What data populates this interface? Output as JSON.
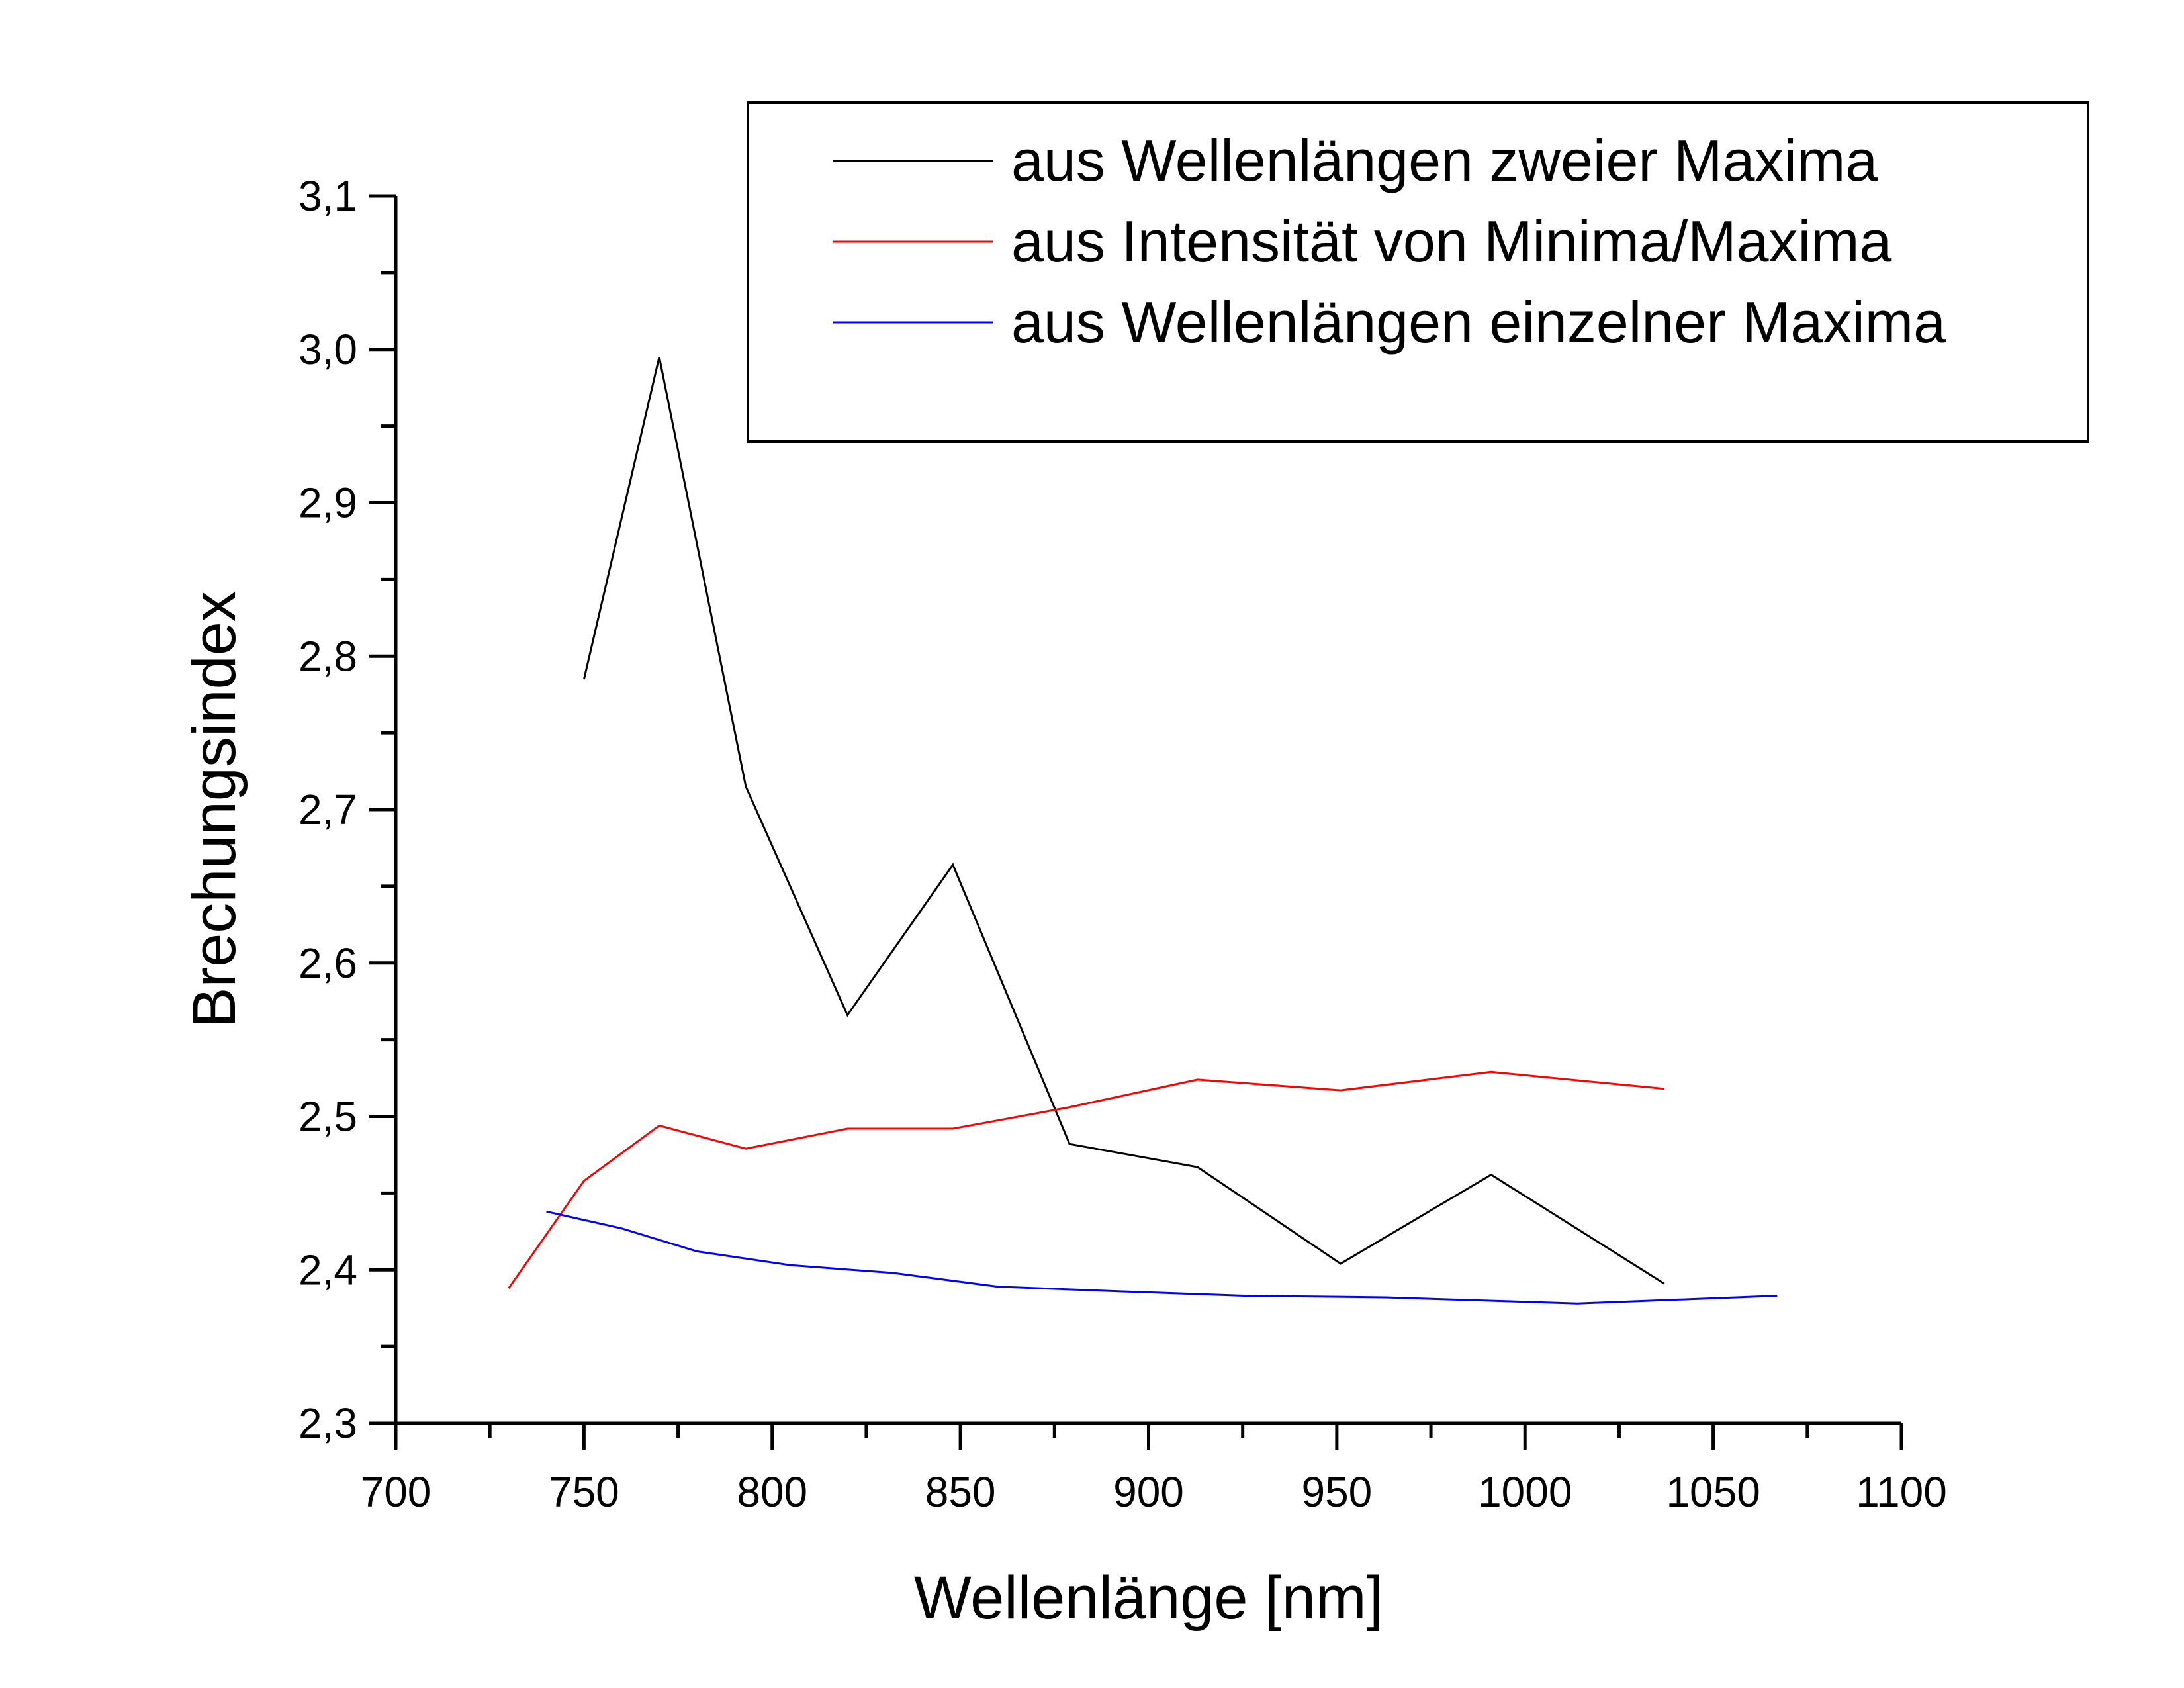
{
  "chart_data": {
    "type": "line",
    "title": "",
    "xlabel": "Wellenlänge [nm]",
    "ylabel": "Brechungsindex",
    "xlim": [
      700,
      1100
    ],
    "ylim": [
      2.3,
      3.1
    ],
    "x_ticks": [
      "700",
      "750",
      "800",
      "850",
      "900",
      "950",
      "1000",
      "1050",
      "1100"
    ],
    "y_ticks": [
      "2,3",
      "2,4",
      "2,5",
      "2,6",
      "2,7",
      "2,8",
      "2,9",
      "3,0",
      "3,1"
    ],
    "grid": false,
    "legend_position": "top-right",
    "series": [
      {
        "name": "aus Wellenlängen zweier Maxima",
        "color": "#000000",
        "x": [
          750,
          770,
          793,
          820,
          848,
          879,
          913,
          951,
          991,
          1037
        ],
        "y": [
          2.785,
          2.995,
          2.715,
          2.566,
          2.664,
          2.482,
          2.467,
          2.404,
          2.462,
          2.391
        ]
      },
      {
        "name": "aus Intensität von Minima/Maxima",
        "color": "#ff0000",
        "x": [
          730,
          750,
          770,
          793,
          820,
          848,
          879,
          913,
          951,
          991,
          1037
        ],
        "y": [
          2.388,
          2.458,
          2.494,
          2.479,
          2.492,
          2.492,
          2.506,
          2.524,
          2.517,
          2.529,
          2.518
        ]
      },
      {
        "name": "aus Wellenlängen einzelner Maxima",
        "color": "#0000ff",
        "x": [
          740,
          760,
          780,
          805,
          832,
          860,
          892,
          926,
          963,
          1014,
          1067
        ],
        "y": [
          2.438,
          2.427,
          2.412,
          2.403,
          2.398,
          2.389,
          2.386,
          2.383,
          2.382,
          2.378,
          2.383
        ]
      }
    ]
  }
}
